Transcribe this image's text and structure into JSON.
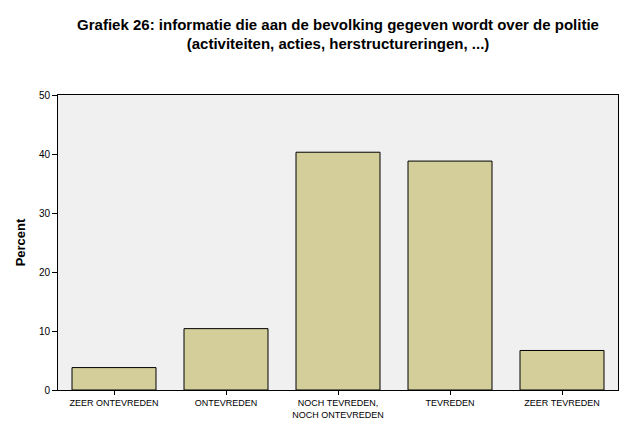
{
  "chart_data": {
    "type": "bar",
    "title": "Grafiek 26: informatie die aan de bevolking gegeven wordt over de politie\n(activiteiten, acties, herstructureringen, ...)",
    "y_label": "Percent",
    "categories": [
      "ZEER ONTEVREDEN",
      "ONTEVREDEN",
      "NOCH TEVREDEN,\nNOCH ONTEVREDEN",
      "TEVREDEN",
      "ZEER TEVREDEN"
    ],
    "values": [
      3.8,
      10.4,
      40.3,
      38.8,
      6.7
    ],
    "color": "#d3ce9a",
    "ylim": [
      0,
      50
    ],
    "yticks": [
      0,
      10,
      20,
      30,
      40,
      50
    ],
    "grid": false
  }
}
